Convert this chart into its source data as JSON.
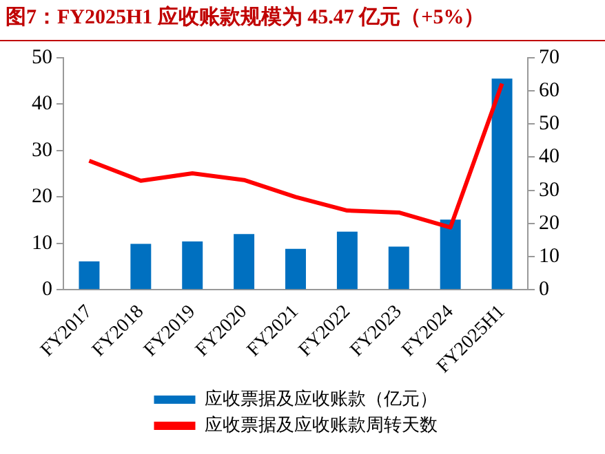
{
  "chart_data": {
    "type": "bar",
    "title": "图7：FY2025H1 应收账款规模为 45.47 亿元（+5%）",
    "categories": [
      "FY2017",
      "FY2018",
      "FY2019",
      "FY2020",
      "FY2021",
      "FY2022",
      "FY2023",
      "FY2024",
      "FY2025H1"
    ],
    "series": [
      {
        "name": "应收票据及应收账款（亿元）",
        "color": "#0070c0",
        "values": [
          6.1,
          9.9,
          10.4,
          12.0,
          8.8,
          12.5,
          9.3,
          15.1,
          45.5
        ]
      },
      {
        "name": "应收票据及应收账款周转天数",
        "type": "line",
        "axis": "y2",
        "color": "#ff0000",
        "values": [
          38.9,
          32.9,
          35.1,
          33.1,
          28.0,
          23.9,
          23.3,
          18.8,
          62.2
        ]
      }
    ],
    "ylim": [
      0,
      50
    ],
    "yticks": [
      0,
      10,
      20,
      30,
      40,
      50
    ],
    "y2lim": [
      0,
      70
    ],
    "y2ticks": [
      0,
      10,
      20,
      30,
      40,
      50,
      60,
      70
    ],
    "grid": false,
    "legend": "bottom",
    "marker": "none"
  }
}
